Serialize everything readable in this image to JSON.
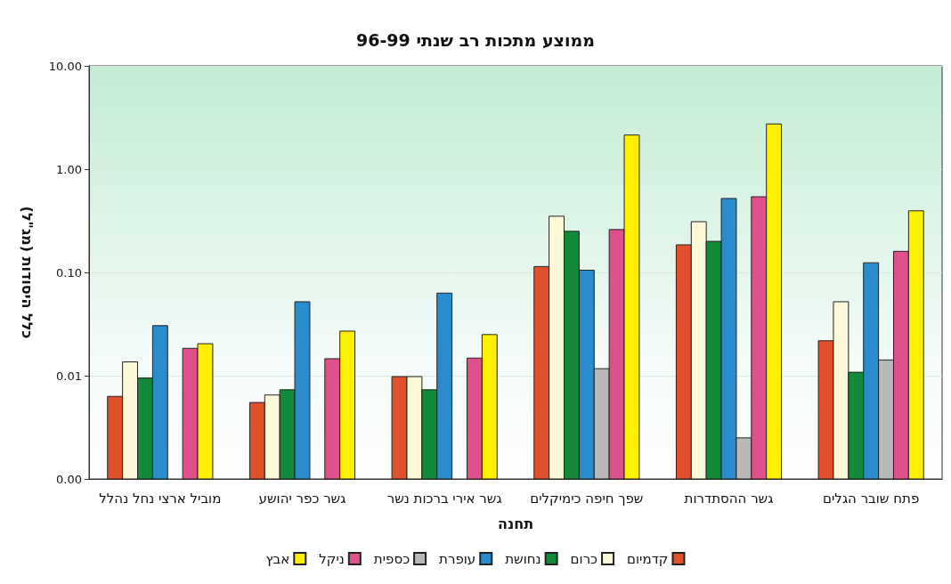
{
  "chart_data": {
    "type": "bar",
    "title": "ממוצע מתכות רב שנתי 96-99",
    "xlabel": "תחנה",
    "ylabel": "כלל היסודות (מג\"ל)",
    "categories": [
      "מוביל ארצי נחל נהלל",
      "גשר כפר יהושע",
      "גשר אירי ברכות נשר",
      "שפך חיפה כימיקלים",
      "גשר ההסתדרות",
      "פתח שובר הגלים"
    ],
    "series": [
      {
        "name": "קדמיום",
        "color": "#e0502a",
        "values": [
          0.0063,
          0.0055,
          0.0098,
          0.114,
          0.185,
          0.0218
        ]
      },
      {
        "name": "כרום",
        "color": "#fdf8d8",
        "values": [
          0.0136,
          0.0065,
          0.0098,
          0.35,
          0.31,
          0.052
        ]
      },
      {
        "name": "נחושת",
        "color": "#118a3a",
        "values": [
          0.0095,
          0.0073,
          0.0073,
          0.25,
          0.2,
          0.0108
        ]
      },
      {
        "name": "עופרת",
        "color": "#2a8ccc",
        "values": [
          0.0305,
          0.052,
          0.063,
          0.105,
          0.52,
          0.124
        ]
      },
      {
        "name": "כספית",
        "color": "#b8b8b8",
        "values": [
          null,
          null,
          null,
          0.0117,
          0.0025,
          0.0142
        ]
      },
      {
        "name": "ניקל",
        "color": "#e0508a",
        "values": [
          0.0184,
          0.0146,
          0.0148,
          0.26,
          0.54,
          0.16
        ]
      },
      {
        "name": "אבץ",
        "color": "#fff000",
        "values": [
          0.0204,
          0.027,
          0.025,
          2.14,
          2.74,
          0.395
        ]
      }
    ],
    "log": true,
    "ylim": [
      0.001,
      10
    ],
    "yticks": [
      {
        "value": 0.001,
        "label": "0.00"
      },
      0.01,
      {
        "value": 0.1,
        "label": "0.10"
      },
      {
        "value": 1,
        "label": "1.00"
      },
      {
        "value": 10,
        "label": "10.00"
      }
    ],
    "grid": "y",
    "legend": "bottom"
  }
}
